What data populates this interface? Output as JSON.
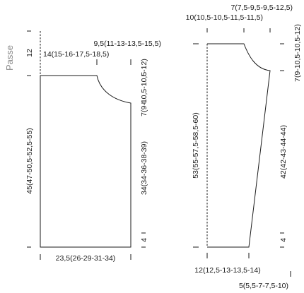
{
  "body_piece": {
    "side_label": "Passe",
    "yoke_height": "12",
    "neck_width": "14(15-16-17,5-18,5)",
    "shoulder_width": "9,5(11-13-13,5-15,5)",
    "armhole_depth": "7(9-10,5-10,5-12)",
    "total_length": "45(47-50,5-52,5-55)",
    "side_length": "34(34-36-38-39)",
    "rib_height": "4",
    "bottom_width": "23,5(26-29-31-34)"
  },
  "sleeve_piece": {
    "cap_shoulder": "7(7,5-9,5-9,5-12,5)",
    "top_width": "10(10,5-10,5-11,5-11,5)",
    "cap_depth": "7(9-10,5-10,5-12)",
    "total_length": "53(55-57,5-58,5-60)",
    "side_length": "42(42-43-44-44)",
    "rib_height": "4",
    "bottom_width": "12(12,5-13-13,5-14)",
    "bottom_extra": "5(5,5-7-7,5-10)"
  }
}
